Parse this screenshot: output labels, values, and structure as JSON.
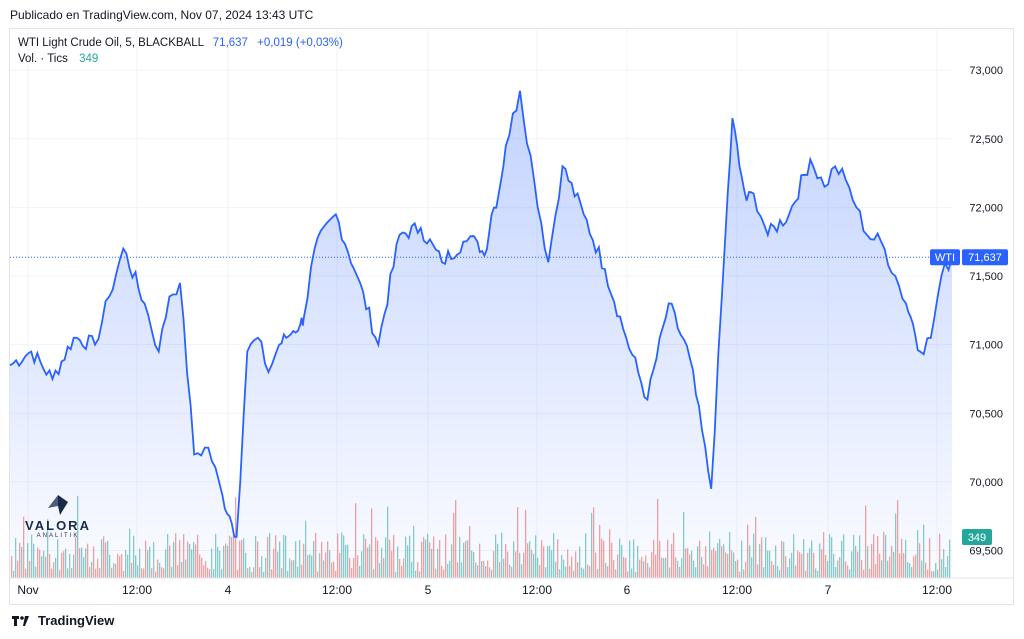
{
  "header": {
    "published": "Publicado en TradingView.com, Nov 07, 2024 13:43 UTC"
  },
  "legend": {
    "symbol": "WTI Light Crude Oil, 5, BLACKBALL",
    "last": "71,637",
    "change": "+0,019 (+0,03%)",
    "volume_label": "Vol. · Tics",
    "volume_value": "349"
  },
  "price_label": {
    "tag": "WTI",
    "value": "71,637"
  },
  "volume_label": {
    "value": "349"
  },
  "watermark": {
    "name": "VALORA",
    "sub": "ANALITIK"
  },
  "footer": {
    "brand": "TradingView"
  },
  "colors": {
    "line": "#2962ff",
    "area_top": "#2962ff",
    "vol_up": "#26a69a",
    "vol_down": "#ef5350",
    "grid": "#f0f3fa",
    "text": "#131722"
  },
  "chart_data": {
    "type": "area",
    "title": "WTI Light Crude Oil, 5, BLACKBALL",
    "x_ticks": [
      "Nov",
      "12:00",
      "4",
      "12:00",
      "5",
      "12:00",
      "6",
      "12:00",
      "7",
      "12:00"
    ],
    "y_ticks": [
      "73,000",
      "72,500",
      "72,000",
      "71,500",
      "71,000",
      "70,500",
      "70,000",
      "69,500"
    ],
    "ylim": [
      69.3,
      73.3
    ],
    "x_range_hours": [
      0,
      133
    ],
    "last_price": 71.637,
    "series": [
      {
        "name": "WTI Light Crude Oil",
        "x_hours": [
          0,
          3,
          6,
          9,
          12,
          14,
          16,
          19,
          21,
          22.5,
          24,
          26,
          28,
          30,
          31,
          32,
          33.5,
          35,
          36.5,
          38,
          39,
          40,
          41,
          41.5,
          43,
          46,
          49,
          52,
          55,
          58,
          61,
          64,
          66,
          67,
          68,
          69,
          70,
          72,
          74,
          76,
          78,
          81,
          84,
          87,
          90,
          93,
          96,
          99,
          101,
          102,
          103,
          104,
          105,
          107,
          110,
          113,
          115,
          116.5,
          118,
          119.5,
          121,
          123,
          125,
          126.5,
          127.5,
          128.5,
          130,
          131.5,
          133
        ],
        "values": [
          70.85,
          70.95,
          70.75,
          71.05,
          71.0,
          71.35,
          71.7,
          71.3,
          70.95,
          71.35,
          71.45,
          70.2,
          70.25,
          69.9,
          69.75,
          69.6,
          70.95,
          71.05,
          70.8,
          71.0,
          71.05,
          71.1,
          71.15,
          71.2,
          71.7,
          71.95,
          71.5,
          71.0,
          71.8,
          71.85,
          71.6,
          71.75,
          71.75,
          71.65,
          71.95,
          72.1,
          72.45,
          72.85,
          72.2,
          71.6,
          72.3,
          71.95,
          71.55,
          71.05,
          70.6,
          71.3,
          70.9,
          69.95,
          71.8,
          72.65,
          72.3,
          72.05,
          72.1,
          71.8,
          71.95,
          72.35,
          72.15,
          72.3,
          72.2,
          72.0,
          71.8,
          71.75,
          71.5,
          71.3,
          71.15,
          70.95,
          71.05,
          71.5,
          71.637
        ]
      }
    ],
    "volume": {
      "name": "Vol. · Tics",
      "last": 349
    }
  }
}
